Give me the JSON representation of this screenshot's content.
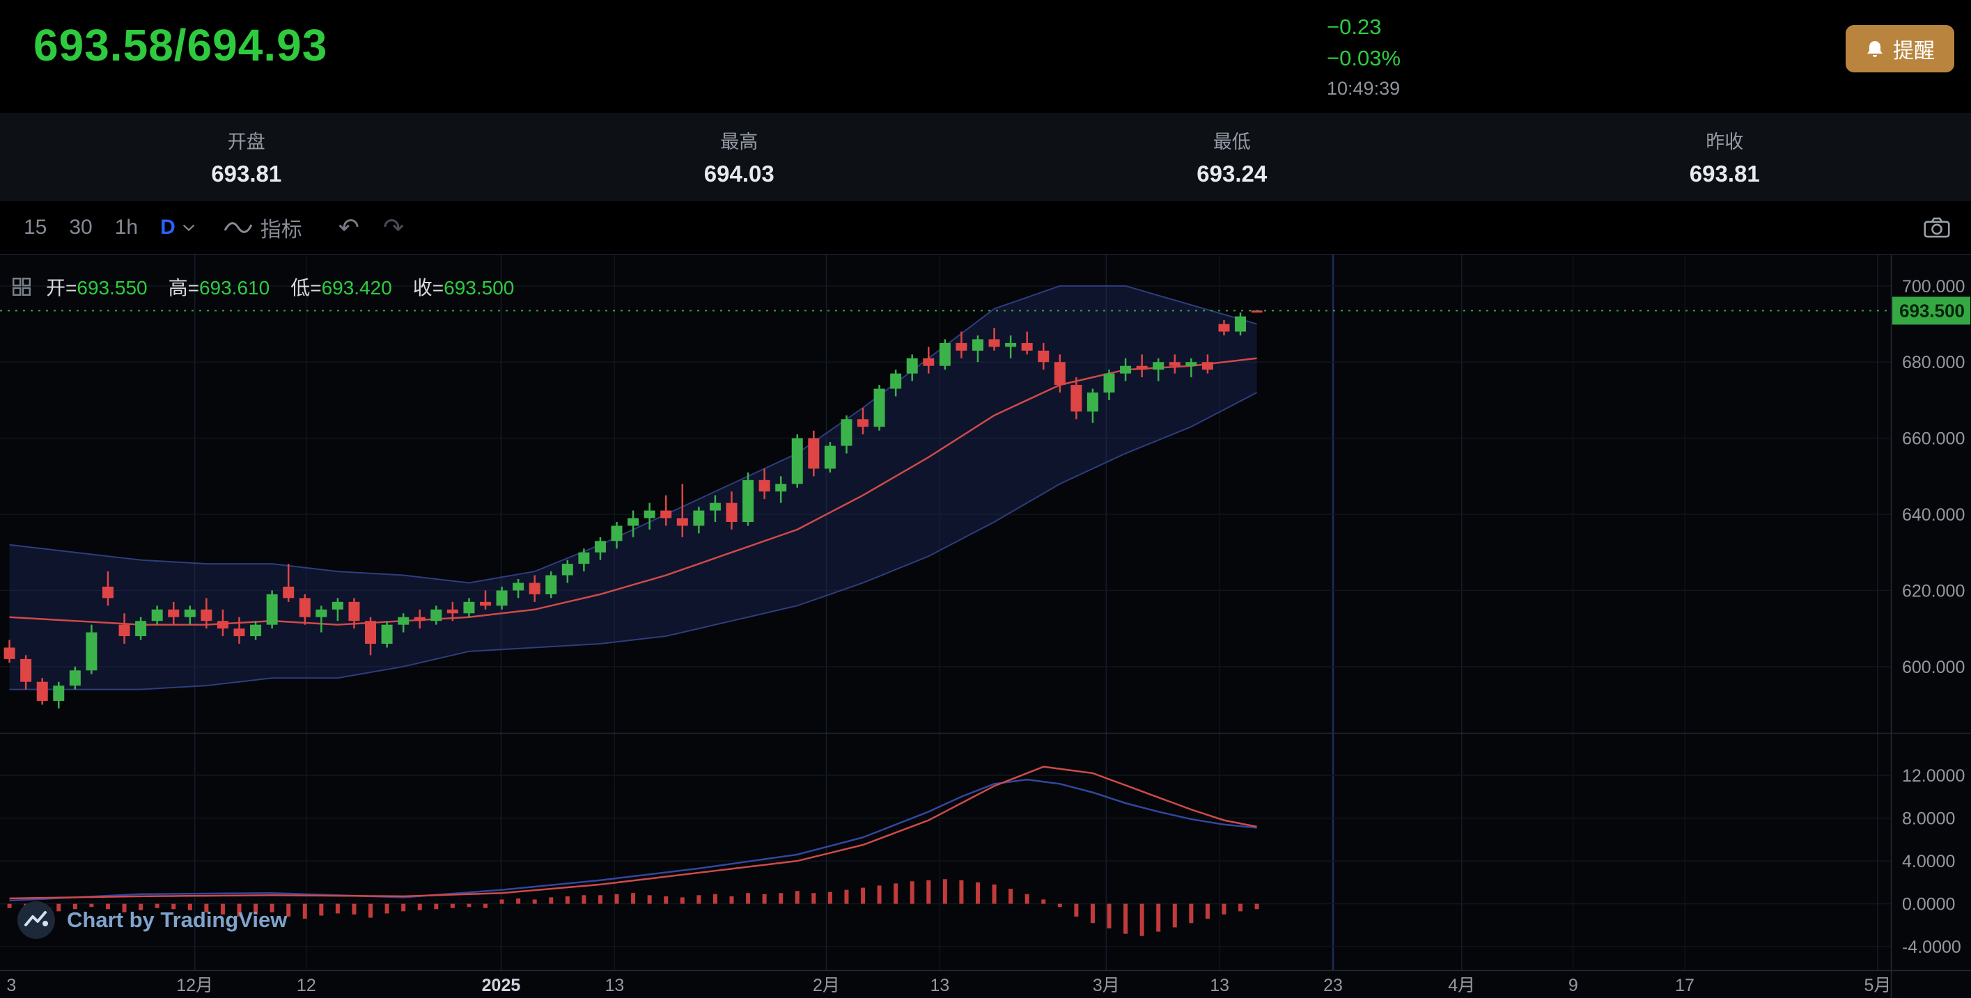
{
  "colors": {
    "up_green": "#2fcb3f",
    "candle_green": "#3bb34a",
    "candle_red": "#e04545",
    "accent_blue": "#2962ff",
    "axis_text": "#9598a1",
    "band_fill": "rgba(38,50,116,0.32)",
    "band_edge": "#2e3d7e",
    "ma_red": "#cf4a4a",
    "macd_blue": "#33479f",
    "hist_red": "#c23b3b",
    "price_tag_bg": "#35a843",
    "alert_bg": "#b9853e"
  },
  "header": {
    "bid_ask": "693.58/694.93",
    "change": "−0.23",
    "change_pct": "−0.03%",
    "time": "10:49:39",
    "alert_label": "提醒"
  },
  "stats": {
    "items": [
      {
        "label": "开盘",
        "value": "693.81"
      },
      {
        "label": "最高",
        "value": "694.03"
      },
      {
        "label": "最低",
        "value": "693.24"
      },
      {
        "label": "昨收",
        "value": "693.81"
      }
    ]
  },
  "toolbar": {
    "intervals": [
      {
        "label": "15",
        "active": false
      },
      {
        "label": "30",
        "active": false
      },
      {
        "label": "1h",
        "active": false
      },
      {
        "label": "D",
        "active": true
      }
    ],
    "indicators_label": "指标",
    "undo_glyph": "↶",
    "redo_glyph": "↷"
  },
  "legend": {
    "eq": "=",
    "open_label": "开",
    "open": "693.550",
    "high_label": "高",
    "high": "693.610",
    "low_label": "低",
    "low": "693.420",
    "close_label": "收",
    "close": "693.500"
  },
  "attribution": "Chart by TradingView",
  "chart_data": {
    "type": "candlestick",
    "current_price": 693.5,
    "current_price_label": "693.500",
    "price_axis": {
      "ticks": [
        700,
        680,
        660,
        640,
        620,
        600
      ],
      "tick_labels": [
        "700.000",
        "680.000",
        "660.000",
        "640.000",
        "620.000",
        "600.000"
      ],
      "pane_price_range": [
        582.6,
        708.2
      ]
    },
    "layout": {
      "candle_start_xf": 0.005,
      "candle_step_xf": 0.00868
    },
    "candles": [
      [
        605,
        607,
        601,
        602
      ],
      [
        602,
        603,
        594,
        596
      ],
      [
        596,
        597,
        590,
        591
      ],
      [
        591,
        596,
        589,
        595
      ],
      [
        595,
        600,
        594,
        599
      ],
      [
        599,
        611,
        598,
        609
      ],
      [
        621,
        625,
        616,
        618
      ],
      [
        611,
        614,
        606,
        608
      ],
      [
        608,
        613,
        607,
        612
      ],
      [
        612,
        616,
        611,
        615
      ],
      [
        615,
        617,
        611,
        613
      ],
      [
        613,
        616,
        611,
        615
      ],
      [
        615,
        618,
        610,
        612
      ],
      [
        612,
        615,
        608,
        610
      ],
      [
        610,
        613,
        606,
        608
      ],
      [
        608,
        612,
        607,
        611
      ],
      [
        611,
        620,
        610,
        619
      ],
      [
        621,
        627,
        617,
        618
      ],
      [
        618,
        619,
        611,
        613
      ],
      [
        613,
        616,
        609,
        615
      ],
      [
        615,
        618,
        612,
        617
      ],
      [
        617,
        618,
        610,
        612
      ],
      [
        612,
        613,
        603,
        606
      ],
      [
        606,
        612,
        605,
        611
      ],
      [
        611,
        614,
        609,
        613
      ],
      [
        613,
        615,
        610,
        612
      ],
      [
        612,
        616,
        611,
        615
      ],
      [
        615,
        617,
        612,
        614
      ],
      [
        614,
        618,
        613,
        617
      ],
      [
        617,
        620,
        615,
        616
      ],
      [
        616,
        621,
        615,
        620
      ],
      [
        620,
        623,
        618,
        622
      ],
      [
        622,
        624,
        617,
        619
      ],
      [
        619,
        625,
        618,
        624
      ],
      [
        624,
        628,
        622,
        627
      ],
      [
        627,
        631,
        625,
        630
      ],
      [
        630,
        634,
        628,
        633
      ],
      [
        633,
        638,
        631,
        637
      ],
      [
        637,
        641,
        634,
        639
      ],
      [
        639,
        643,
        636,
        641
      ],
      [
        641,
        645,
        637,
        639
      ],
      [
        639,
        648,
        634,
        637
      ],
      [
        637,
        642,
        635,
        641
      ],
      [
        641,
        645,
        638,
        643
      ],
      [
        643,
        646,
        636,
        638
      ],
      [
        638,
        651,
        637,
        649
      ],
      [
        649,
        652,
        644,
        646
      ],
      [
        646,
        650,
        643,
        648
      ],
      [
        648,
        661,
        647,
        660
      ],
      [
        660,
        662,
        650,
        652
      ],
      [
        652,
        659,
        651,
        658
      ],
      [
        658,
        666,
        656,
        665
      ],
      [
        665,
        668,
        661,
        663
      ],
      [
        663,
        674,
        662,
        673
      ],
      [
        673,
        678,
        671,
        677
      ],
      [
        677,
        682,
        675,
        681
      ],
      [
        681,
        684,
        677,
        679
      ],
      [
        679,
        686,
        678,
        685
      ],
      [
        685,
        688,
        681,
        683
      ],
      [
        683,
        687,
        680,
        686
      ],
      [
        686,
        689,
        683,
        684
      ],
      [
        684,
        687,
        681,
        685
      ],
      [
        685,
        688,
        682,
        683
      ],
      [
        683,
        685,
        678,
        680
      ],
      [
        680,
        682,
        672,
        674
      ],
      [
        674,
        676,
        665,
        667
      ],
      [
        667,
        673,
        664,
        672
      ],
      [
        672,
        678,
        670,
        677
      ],
      [
        677,
        681,
        675,
        679
      ],
      [
        679,
        682,
        676,
        678
      ],
      [
        678,
        681,
        675,
        680
      ],
      [
        680,
        682,
        677,
        679
      ],
      [
        679,
        681,
        676,
        680
      ],
      [
        680,
        682,
        677,
        678
      ],
      [
        690,
        691,
        687,
        688
      ],
      [
        688,
        693,
        687,
        692
      ],
      [
        693.55,
        693.61,
        693.42,
        693.5
      ]
    ],
    "bollinger": [
      [
        0,
        613,
        19
      ],
      [
        4,
        612,
        18
      ],
      [
        8,
        611,
        17
      ],
      [
        12,
        611,
        16
      ],
      [
        16,
        612,
        15
      ],
      [
        20,
        611,
        14
      ],
      [
        24,
        612,
        12
      ],
      [
        28,
        613,
        9
      ],
      [
        32,
        615,
        10
      ],
      [
        36,
        619,
        13
      ],
      [
        40,
        624,
        16
      ],
      [
        44,
        630,
        18
      ],
      [
        48,
        636,
        20
      ],
      [
        52,
        645,
        23
      ],
      [
        56,
        655,
        26
      ],
      [
        60,
        666,
        28
      ],
      [
        64,
        674,
        26
      ],
      [
        68,
        678,
        22
      ],
      [
        72,
        679,
        16
      ],
      [
        76,
        681,
        9
      ]
    ],
    "indicator_pane": {
      "axis_ticks": [
        12,
        8,
        4,
        0,
        -4
      ],
      "tick_labels": [
        "12.0000",
        "8.0000",
        "4.0000",
        "0.0000",
        "-4.0000"
      ],
      "pane_value_range": [
        -6.2,
        15.9
      ],
      "red_line": [
        [
          0,
          0.5
        ],
        [
          8,
          0.7
        ],
        [
          16,
          0.8
        ],
        [
          24,
          0.7
        ],
        [
          30,
          1.0
        ],
        [
          36,
          1.8
        ],
        [
          42,
          2.9
        ],
        [
          48,
          4.0
        ],
        [
          52,
          5.5
        ],
        [
          56,
          7.8
        ],
        [
          60,
          11.0
        ],
        [
          63,
          12.8
        ],
        [
          66,
          12.2
        ],
        [
          69,
          10.5
        ],
        [
          72,
          8.8
        ],
        [
          74,
          7.8
        ],
        [
          76,
          7.2
        ]
      ],
      "blue_line": [
        [
          0,
          0.3
        ],
        [
          8,
          0.9
        ],
        [
          16,
          1.0
        ],
        [
          24,
          0.6
        ],
        [
          30,
          1.3
        ],
        [
          36,
          2.2
        ],
        [
          42,
          3.3
        ],
        [
          48,
          4.6
        ],
        [
          52,
          6.2
        ],
        [
          56,
          8.6
        ],
        [
          58,
          10.0
        ],
        [
          60,
          11.2
        ],
        [
          62,
          11.6
        ],
        [
          64,
          11.2
        ],
        [
          66,
          10.4
        ],
        [
          68,
          9.4
        ],
        [
          70,
          8.6
        ],
        [
          72,
          7.9
        ],
        [
          74,
          7.4
        ],
        [
          76,
          7.1
        ]
      ],
      "histogram": [
        -0.4,
        -0.6,
        -0.9,
        -0.7,
        -0.5,
        -0.3,
        -0.5,
        -0.8,
        -0.6,
        -0.4,
        -0.5,
        -0.6,
        -0.8,
        -1.0,
        -1.2,
        -1.0,
        -0.8,
        -1.2,
        -1.4,
        -1.1,
        -0.9,
        -1.0,
        -1.3,
        -0.9,
        -0.7,
        -0.6,
        -0.5,
        -0.4,
        -0.3,
        -0.4,
        0.4,
        0.5,
        0.4,
        0.6,
        0.7,
        0.8,
        0.8,
        0.9,
        1.0,
        0.8,
        0.7,
        0.6,
        0.8,
        0.9,
        0.7,
        1.0,
        0.9,
        1.0,
        1.2,
        1.0,
        1.1,
        1.3,
        1.5,
        1.7,
        1.9,
        2.1,
        2.2,
        2.3,
        2.2,
        2.0,
        1.8,
        1.4,
        0.9,
        0.4,
        -0.3,
        -1.2,
        -1.8,
        -2.3,
        -2.8,
        -3.0,
        -2.6,
        -2.2,
        -1.8,
        -1.4,
        -1.0,
        -0.7,
        -0.5
      ]
    },
    "time_axis": {
      "labels": [
        {
          "t": "3",
          "xf": 0.006
        },
        {
          "t": "12月",
          "xf": 0.103,
          "major": true
        },
        {
          "t": "12",
          "xf": 0.162
        },
        {
          "t": "2025",
          "xf": 0.265,
          "major": true,
          "em": true
        },
        {
          "t": "13",
          "xf": 0.325
        },
        {
          "t": "2月",
          "xf": 0.437,
          "major": true
        },
        {
          "t": "13",
          "xf": 0.497
        },
        {
          "t": "3月",
          "xf": 0.585,
          "major": true
        },
        {
          "t": "13",
          "xf": 0.645
        },
        {
          "t": "23",
          "xf": 0.705,
          "special": true
        },
        {
          "t": "4月",
          "xf": 0.773,
          "major": true
        },
        {
          "t": "9",
          "xf": 0.832
        },
        {
          "t": "17",
          "xf": 0.891
        },
        {
          "t": "5月",
          "xf": 0.993,
          "major": true
        }
      ]
    }
  }
}
